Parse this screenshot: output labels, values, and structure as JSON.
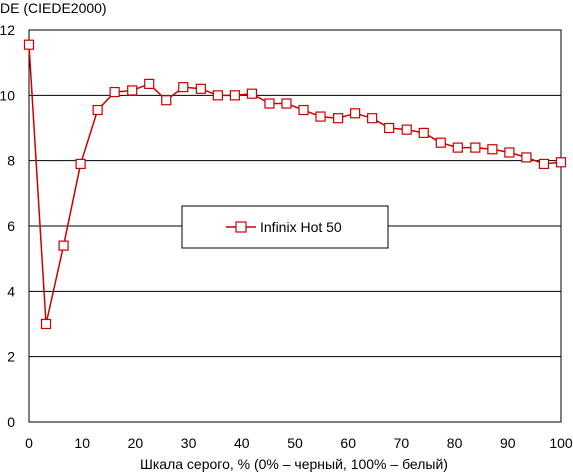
{
  "chart_data": {
    "type": "line",
    "ylabel": "DE (CIEDE2000)",
    "xlabel": "Шкала серого, % (0% – черный, 100% – белый)",
    "xlim": [
      0,
      100
    ],
    "ylim": [
      0,
      12
    ],
    "x_ticks": [
      "0",
      "10",
      "20",
      "30",
      "40",
      "50",
      "60",
      "70",
      "80",
      "90",
      "100"
    ],
    "y_ticks": [
      "0",
      "2",
      "4",
      "6",
      "8",
      "10",
      "12"
    ],
    "grid": "horizontal",
    "legend_position": "center",
    "series": [
      {
        "name": "Infinix Hot 50",
        "color": "#cc0000",
        "marker": "hollow-square",
        "x": [
          0,
          3.2,
          6.5,
          9.7,
          12.9,
          16.1,
          19.4,
          22.6,
          25.8,
          29.0,
          32.3,
          35.5,
          38.7,
          41.9,
          45.2,
          48.4,
          51.6,
          54.8,
          58.1,
          61.3,
          64.5,
          67.7,
          71.0,
          74.2,
          77.4,
          80.6,
          83.9,
          87.1,
          90.3,
          93.5,
          96.8,
          100
        ],
        "values": [
          11.55,
          3.0,
          5.4,
          7.9,
          9.55,
          10.1,
          10.15,
          10.35,
          9.85,
          10.25,
          10.2,
          10.0,
          10.0,
          10.05,
          9.75,
          9.75,
          9.55,
          9.35,
          9.3,
          9.45,
          9.3,
          9.0,
          8.95,
          8.85,
          8.55,
          8.4,
          8.4,
          8.35,
          8.25,
          8.1,
          7.9,
          7.95
        ]
      }
    ]
  }
}
